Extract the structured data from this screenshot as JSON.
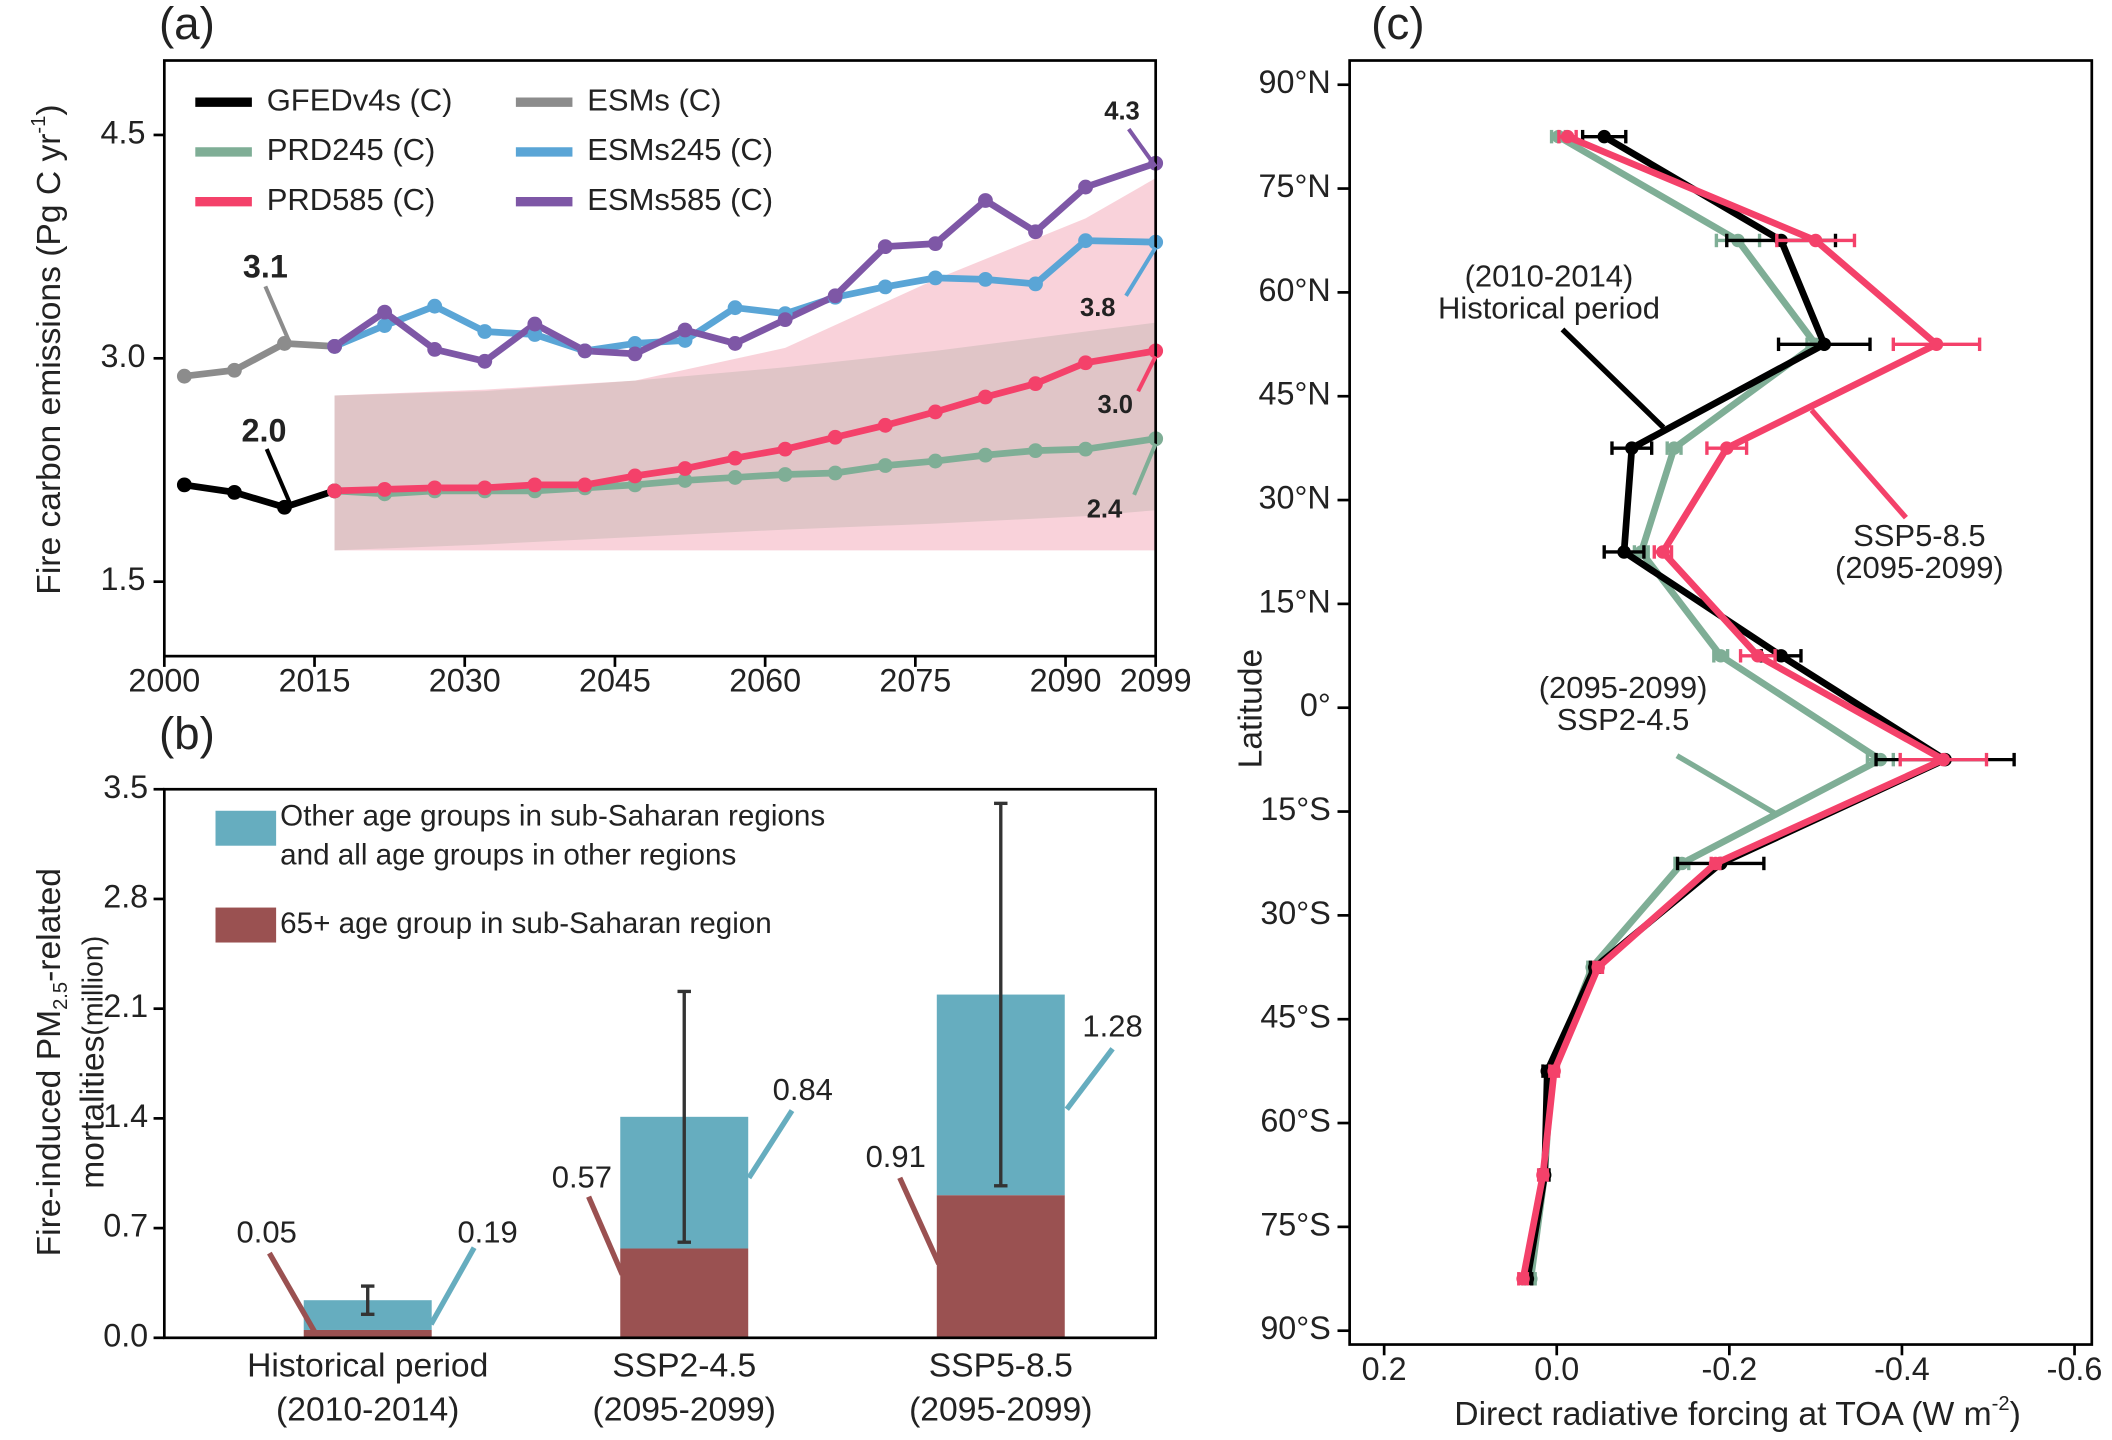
{
  "chart_data": [
    {
      "type": "line",
      "label": "(a)",
      "ylabel": [
        "Fire carbon emissions (Pg C  yr",
        "-1",
        ")"
      ],
      "xlim": [
        2000,
        2099
      ],
      "xticks": [
        2000,
        2015,
        2030,
        2045,
        2060,
        2075,
        2090,
        2099
      ],
      "ylim": [
        1.0,
        5.0
      ],
      "yticks": [
        1.5,
        {
          "value": 3,
          "label": "3.0"
        },
        4.5
      ],
      "series": [
        {
          "name": "GFEDv4s (C)",
          "color": "#000000",
          "x": [
            2002,
            2007,
            2012,
            2017
          ],
          "values": [
            2.15,
            2.1,
            2.0,
            2.11
          ]
        },
        {
          "name": "ESMs (C)",
          "color": "#8c8c8c",
          "x": [
            2002,
            2007,
            2012,
            2017
          ],
          "values": [
            2.88,
            2.92,
            3.1,
            3.08
          ]
        },
        {
          "name": "PRD245 (C)",
          "color": "#7fae96",
          "x": [
            2017,
            2022,
            2027,
            2032,
            2037,
            2042,
            2047,
            2052,
            2057,
            2062,
            2067,
            2072,
            2077,
            2082,
            2087,
            2092,
            2099
          ],
          "values": [
            2.11,
            2.09,
            2.11,
            2.11,
            2.11,
            2.13,
            2.15,
            2.18,
            2.2,
            2.22,
            2.23,
            2.28,
            2.31,
            2.35,
            2.38,
            2.39,
            2.46
          ]
        },
        {
          "name": "ESMs245 (C)",
          "color": "#5aa5d6",
          "x": [
            2017,
            2022,
            2027,
            2032,
            2037,
            2042,
            2047,
            2052,
            2057,
            2062,
            2067,
            2072,
            2077,
            2082,
            2087,
            2092,
            2099
          ],
          "values": [
            3.08,
            3.22,
            3.35,
            3.18,
            3.16,
            3.05,
            3.1,
            3.12,
            3.34,
            3.3,
            3.41,
            3.48,
            3.54,
            3.53,
            3.5,
            3.79,
            3.78
          ]
        },
        {
          "name": "PRD585 (C)",
          "color": "#f4416a",
          "x": [
            2017,
            2022,
            2027,
            2032,
            2037,
            2042,
            2047,
            2052,
            2057,
            2062,
            2067,
            2072,
            2077,
            2082,
            2087,
            2092,
            2099
          ],
          "values": [
            2.11,
            2.12,
            2.13,
            2.13,
            2.15,
            2.15,
            2.21,
            2.26,
            2.33,
            2.39,
            2.47,
            2.55,
            2.64,
            2.74,
            2.83,
            2.97,
            3.05
          ]
        },
        {
          "name": "ESMs585 (C)",
          "color": "#7e57a6",
          "x": [
            2017,
            2022,
            2027,
            2032,
            2037,
            2042,
            2047,
            2052,
            2057,
            2062,
            2067,
            2072,
            2077,
            2082,
            2087,
            2092,
            2099
          ],
          "values": [
            3.08,
            3.31,
            3.06,
            2.98,
            3.23,
            3.05,
            3.03,
            3.19,
            3.1,
            3.26,
            3.42,
            3.75,
            3.77,
            4.06,
            3.85,
            4.15,
            4.31
          ]
        }
      ],
      "bands": [
        {
          "color": "#9cc9b4",
          "x": [
            2017,
            2032,
            2047,
            2062,
            2077,
            2092,
            2099
          ],
          "upper": [
            2.75,
            2.78,
            2.85,
            2.94,
            3.05,
            3.18,
            3.24
          ],
          "lower": [
            1.71,
            1.75,
            1.8,
            1.85,
            1.89,
            1.94,
            1.98
          ]
        },
        {
          "color": "#f4a6b5",
          "x": [
            2017,
            2032,
            2047,
            2062,
            2077,
            2092,
            2099
          ],
          "upper": [
            2.75,
            2.79,
            2.85,
            3.07,
            3.53,
            3.94,
            4.21
          ],
          "lower": [
            1.71,
            1.71,
            1.71,
            1.71,
            1.71,
            1.71,
            1.71
          ]
        }
      ],
      "annotations": [
        "3.1",
        "2.0",
        "4.3",
        "3.8",
        "3.0",
        "2.4"
      ]
    },
    {
      "type": "stacked-bar",
      "label": "(b)",
      "ylabel": [
        [
          "Fire-induced PM",
          "2.5",
          "-related"
        ],
        [
          "mortalities",
          "(million)"
        ]
      ],
      "categories": [
        [
          "Historical period",
          "(2010-2014)"
        ],
        [
          "SSP2-4.5",
          "(2095-2099)"
        ],
        [
          "SSP5-8.5",
          "(2095-2099)"
        ]
      ],
      "series": [
        {
          "name": "65+ age group in sub-Saharan region",
          "color": "#9a5151",
          "values": [
            0.05,
            0.57,
            0.91
          ]
        },
        {
          "name": [
            "Other age groups in sub-Saharan regions",
            "and all age groups in other regions"
          ],
          "color": "#66adbf",
          "values": [
            0.19,
            0.84,
            1.28
          ]
        }
      ],
      "errors": [
        0.09,
        0.8,
        1.22
      ],
      "ylim": [
        0,
        3.5
      ],
      "yticks": [
        {
          "value": 0,
          "label": "0.0"
        },
        0.7,
        1.4,
        2.1,
        2.8,
        3.5
      ]
    },
    {
      "type": "profile",
      "label": "(c)",
      "xlabel": [
        "Direct radiative forcing at TOA (W m",
        "-2",
        ")"
      ],
      "ylabel": "Latitude",
      "lat": [
        82.5,
        67.5,
        52.5,
        37.5,
        22.5,
        7.5,
        -7.5,
        -22.5,
        -37.5,
        -52.5,
        -67.5,
        -82.5
      ],
      "xlim": [
        0.24,
        -0.62
      ],
      "xticks": [
        0.2,
        {
          "value": 0,
          "label": "0.0"
        },
        -0.2,
        -0.4,
        -0.6
      ],
      "ylim": [
        -92,
        93.5
      ],
      "yticks": [
        {
          "value": 90,
          "label": "90°N"
        },
        {
          "value": 75,
          "label": "75°N"
        },
        {
          "value": 60,
          "label": "60°N"
        },
        {
          "value": 45,
          "label": "45°N"
        },
        {
          "value": 30,
          "label": "30°N"
        },
        {
          "value": 15,
          "label": "15°N"
        },
        {
          "value": 0,
          "label": "0°"
        },
        {
          "value": -15,
          "label": "15°S"
        },
        {
          "value": -30,
          "label": "30°S"
        },
        {
          "value": -45,
          "label": "45°S"
        },
        {
          "value": -60,
          "label": "60°S"
        },
        {
          "value": -75,
          "label": "75°S"
        },
        {
          "value": -90,
          "label": "90°S"
        }
      ],
      "series": [
        {
          "color": "#7fae96",
          "values": [
            -0.002,
            -0.21,
            -0.3,
            -0.136,
            -0.098,
            -0.19,
            -0.375,
            -0.145,
            -0.041,
            0.006,
            0.014,
            0.03
          ],
          "errors": [
            0.008,
            0.025,
            0.01,
            0.008,
            0.008,
            0.008,
            0.015,
            0.008,
            0.005,
            0.005,
            0.005,
            0.005
          ]
        },
        {
          "color": "#000000",
          "values": [
            -0.055,
            -0.26,
            -0.31,
            -0.087,
            -0.078,
            -0.26,
            -0.45,
            -0.19,
            -0.044,
            0.011,
            0.014,
            0.034
          ],
          "errors": [
            0.025,
            0.063,
            0.053,
            0.023,
            0.023,
            0.023,
            0.08,
            0.05,
            0.005,
            0.005,
            0.005,
            0.005
          ]
        },
        {
          "color": "#f4416a",
          "values": [
            -0.0125,
            -0.3,
            -0.44,
            -0.197,
            -0.123,
            -0.233,
            -0.448,
            -0.184,
            -0.048,
            0.003,
            0.016,
            0.039
          ],
          "errors": [
            0.01,
            0.045,
            0.05,
            0.023,
            0.01,
            0.02,
            0.05,
            0.005,
            0.005,
            0.005,
            0.005,
            0.005
          ]
        }
      ],
      "annotations": [
        [
          "(2010-2014)",
          "Historical period"
        ],
        [
          "SSP5-8.5",
          "(2095-2099)"
        ],
        [
          "(2095-2099)",
          "SSP2-4.5"
        ]
      ]
    }
  ]
}
